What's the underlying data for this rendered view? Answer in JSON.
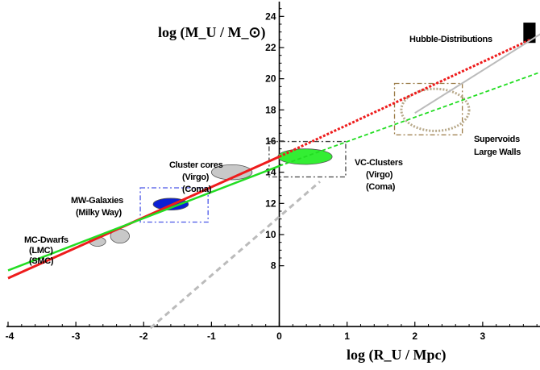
{
  "chart_data": {
    "type": "line",
    "title": "",
    "xlabel": "log (R_U / Mpc)",
    "ylabel": "log (M_U / M_⊙)",
    "xlim": [
      -4,
      4
    ],
    "ylim": [
      4,
      25
    ],
    "x_ticks": [
      "-4",
      "-3",
      "-2",
      "-1",
      "0",
      "1",
      "2",
      "3"
    ],
    "y_ticks": [
      "8",
      "10",
      "12",
      "14",
      "16",
      "18",
      "20",
      "22",
      "24"
    ],
    "grid": false,
    "series": [
      {
        "color": "#ee1c1c",
        "style": "solid",
        "x": [
          -4,
          0
        ],
        "y": [
          7.2,
          15.0
        ]
      },
      {
        "color": "#ee1c1c",
        "style": "dotted",
        "x": [
          0,
          3.7
        ],
        "y": [
          15.0,
          22.5
        ]
      },
      {
        "color": "#22dd22",
        "style": "solid",
        "x": [
          -4,
          0
        ],
        "y": [
          7.7,
          14.4
        ]
      },
      {
        "color": "#22dd22",
        "style": "dashed",
        "x": [
          0,
          3.9
        ],
        "y": [
          14.4,
          20.5
        ]
      },
      {
        "color": "#bbbbbb",
        "style": "dashed",
        "x": [
          -1.9,
          0.6
        ],
        "y": [
          4.0,
          13.4
        ]
      },
      {
        "color": "#bbbbbb",
        "style": "solid",
        "x": [
          2.0,
          3.9
        ],
        "y": [
          17.8,
          23.0
        ]
      }
    ],
    "regions": [
      {
        "label": [
          "MC-Dwarfs",
          "(LMC)",
          "(SMC)"
        ],
        "ellipses": [
          {
            "cx": -2.68,
            "cy": 9.55,
            "rx": 0.12,
            "ry": 0.3,
            "fill": "#c8c8c8"
          },
          {
            "cx": -2.35,
            "cy": 9.9,
            "rx": 0.14,
            "ry": 0.45,
            "fill": "#c8c8c8"
          }
        ],
        "box": null
      },
      {
        "label": [
          "MW-Galaxies",
          "(Milky Way)"
        ],
        "ellipses": [
          {
            "cx": -1.6,
            "cy": 11.95,
            "rx": 0.26,
            "ry": 0.38,
            "fill": "#0b1fd6"
          }
        ],
        "box": {
          "x0": -2.05,
          "x1": -1.05,
          "y0": 10.8,
          "y1": 13.0,
          "color": "#4a56e8"
        }
      },
      {
        "label": [
          "Cluster cores",
          "(Virgo)",
          "(Coma)"
        ],
        "ellipses": [
          {
            "cx": -0.7,
            "cy": 14.0,
            "rx": 0.3,
            "ry": 0.48,
            "fill": "#c8c8c8"
          }
        ],
        "box": null
      },
      {
        "label": [
          "VC-Clusters",
          "(Virgo)",
          "(Coma)"
        ],
        "ellipses": [
          {
            "cx": 0.38,
            "cy": 15.0,
            "rx": 0.4,
            "ry": 0.5,
            "fill": "#33ee33"
          }
        ],
        "box": {
          "x0": -0.15,
          "x1": 0.98,
          "y0": 13.7,
          "y1": 15.97,
          "color": "#444444"
        }
      },
      {
        "label": [
          "Supervoids",
          "Large Walls"
        ],
        "ellipses": [
          {
            "cx": 2.3,
            "cy": 18.0,
            "rx": 0.5,
            "ry": 1.35,
            "fill": "none",
            "stroke": "#b8a98a"
          }
        ],
        "box": {
          "x0": 1.7,
          "x1": 2.7,
          "y0": 16.4,
          "y1": 19.7,
          "color": "#9a7a45"
        }
      },
      {
        "label": [
          "Hubble-Distributions"
        ],
        "ellipses": [],
        "box": null,
        "bar": {
          "x0": 3.6,
          "x1": 3.78,
          "y0": 22.3,
          "y1": 23.6,
          "fill": "#000000"
        }
      }
    ]
  }
}
